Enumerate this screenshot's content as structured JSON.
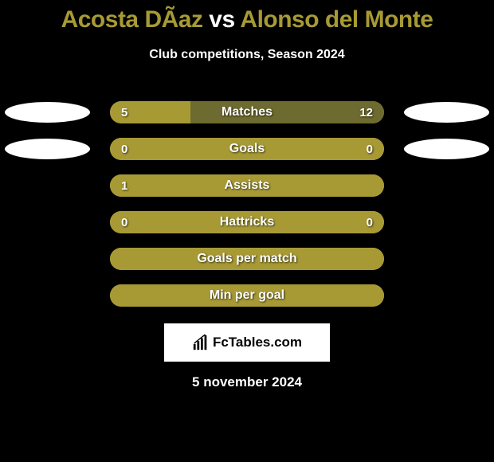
{
  "title": {
    "player1": "Acosta DÃ­az",
    "vs": " vs ",
    "player2": "Alonso del Monte",
    "color1": "#a79a35",
    "color_vs": "#ffffff",
    "color2": "#a79a35"
  },
  "subtitle": "Club competitions, Season 2024",
  "colors": {
    "player1": "#a79a35",
    "player2": "#a79a35",
    "bar_bg": "#a79a35",
    "badge_empty": "#ffffff"
  },
  "rows": [
    {
      "label": "Matches",
      "left_val": "5",
      "right_val": "12",
      "left_pct": 29.4,
      "right_pct": 70.6,
      "show_left_badge": true,
      "show_right_badge": true,
      "left_badge_color": "#ffffff",
      "right_badge_color": "#ffffff",
      "left_fill_color": "#a79a35",
      "right_fill_color": "#6d6b2f"
    },
    {
      "label": "Goals",
      "left_val": "0",
      "right_val": "0",
      "left_pct": 100,
      "right_pct": 0,
      "show_left_badge": true,
      "show_right_badge": true,
      "left_badge_color": "#ffffff",
      "right_badge_color": "#ffffff",
      "left_fill_color": "#a79a35",
      "right_fill_color": "#a79a35"
    },
    {
      "label": "Assists",
      "left_val": "1",
      "right_val": "",
      "left_pct": 100,
      "right_pct": 0,
      "show_left_badge": false,
      "show_right_badge": false,
      "left_fill_color": "#a79a35",
      "right_fill_color": "#a79a35"
    },
    {
      "label": "Hattricks",
      "left_val": "0",
      "right_val": "0",
      "left_pct": 100,
      "right_pct": 0,
      "show_left_badge": false,
      "show_right_badge": false,
      "left_fill_color": "#a79a35",
      "right_fill_color": "#a79a35"
    },
    {
      "label": "Goals per match",
      "left_val": "",
      "right_val": "",
      "left_pct": 100,
      "right_pct": 0,
      "show_left_badge": false,
      "show_right_badge": false,
      "left_fill_color": "#a79a35",
      "right_fill_color": "#a79a35"
    },
    {
      "label": "Min per goal",
      "left_val": "",
      "right_val": "",
      "left_pct": 100,
      "right_pct": 0,
      "show_left_badge": false,
      "show_right_badge": false,
      "left_fill_color": "#a79a35",
      "right_fill_color": "#a79a35"
    }
  ],
  "logo": {
    "text": "FcTables.com"
  },
  "date": "5 november 2024"
}
